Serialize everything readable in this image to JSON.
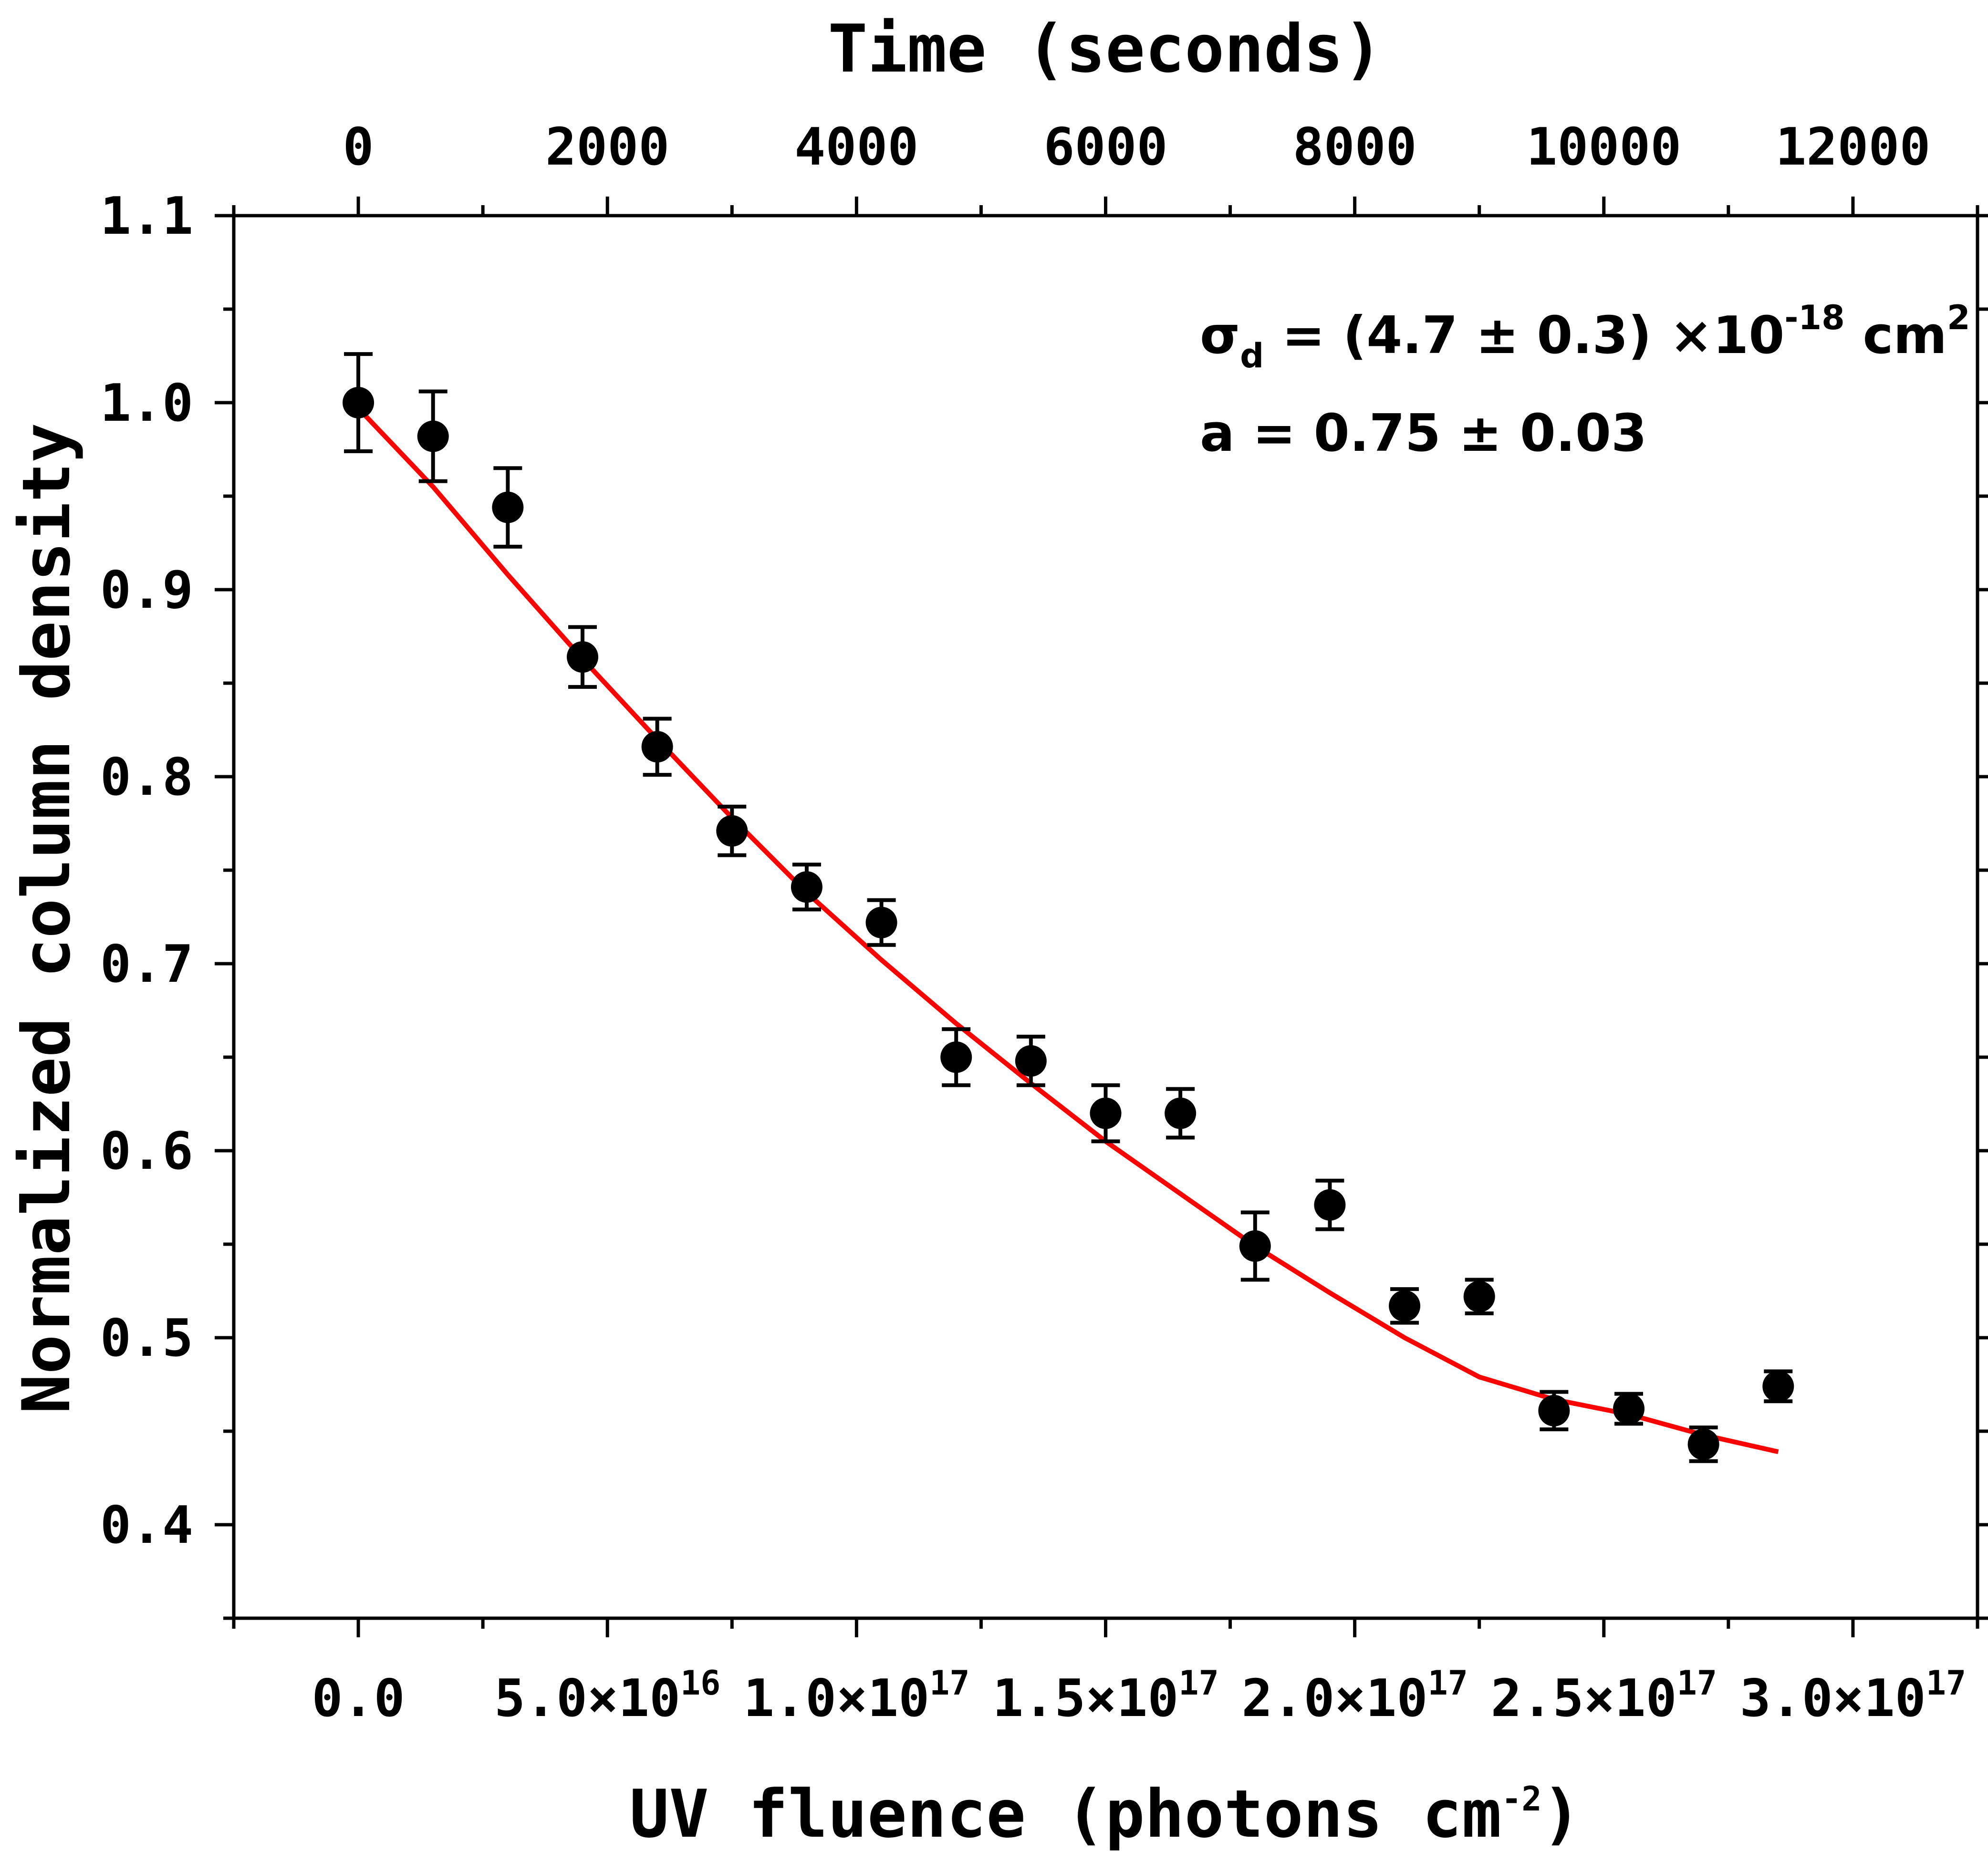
{
  "chart_data": {
    "type": "scatter",
    "xlabel": "UV fluence (photons cm",
    "xlabel_sup": "-2",
    "xlabel_end": ")",
    "x2label": "Time (seconds)",
    "ylabel": "Normalized column density",
    "xlim": [
      -2.5e+16,
      3.25e+17
    ],
    "ylim": [
      0.35,
      1.1
    ],
    "x2lim": [
      -1000,
      13000
    ],
    "grid": false,
    "x_ticks": [
      {
        "value": 0,
        "base": "0.0",
        "exp": ""
      },
      {
        "value": 5e+16,
        "base": "5.0×10",
        "exp": "16"
      },
      {
        "value": 1e+17,
        "base": "1.0×10",
        "exp": "17"
      },
      {
        "value": 1.5e+17,
        "base": "1.5×10",
        "exp": "17"
      },
      {
        "value": 2e+17,
        "base": "2.0×10",
        "exp": "17"
      },
      {
        "value": 2.5e+17,
        "base": "2.5×10",
        "exp": "17"
      },
      {
        "value": 3e+17,
        "base": "3.0×10",
        "exp": "17"
      }
    ],
    "x2_ticks": [
      {
        "value": 0,
        "label": "0"
      },
      {
        "value": 2000,
        "label": "2000"
      },
      {
        "value": 4000,
        "label": "4000"
      },
      {
        "value": 6000,
        "label": "6000"
      },
      {
        "value": 8000,
        "label": "8000"
      },
      {
        "value": 10000,
        "label": "10000"
      },
      {
        "value": 12000,
        "label": "12000"
      }
    ],
    "y_ticks": [
      {
        "value": 0.4,
        "label": "0.4"
      },
      {
        "value": 0.5,
        "label": "0.5"
      },
      {
        "value": 0.6,
        "label": "0.6"
      },
      {
        "value": 0.7,
        "label": "0.7"
      },
      {
        "value": 0.8,
        "label": "0.8"
      },
      {
        "value": 0.9,
        "label": "0.9"
      },
      {
        "value": 1.0,
        "label": "1.0"
      },
      {
        "value": 1.1,
        "label": "1.1"
      }
    ],
    "series": [
      {
        "type": "scatter",
        "color": "#000000",
        "x": [
          0,
          1.5e+16,
          3e+16,
          4.5e+16,
          6e+16,
          7.5e+16,
          9e+16,
          1.05e+17,
          1.2e+17,
          1.35e+17,
          1.5e+17,
          1.65e+17,
          1.8e+17,
          1.95e+17,
          2.1e+17,
          2.25e+17,
          2.4e+17,
          2.55e+17,
          2.7e+17,
          2.85e+17
        ],
        "y": [
          1.0,
          0.982,
          0.944,
          0.864,
          0.816,
          0.771,
          0.741,
          0.722,
          0.65,
          0.648,
          0.62,
          0.62,
          0.549,
          0.571,
          0.517,
          0.522,
          0.461,
          0.462,
          0.443,
          0.474
        ],
        "yerr": [
          0.026,
          0.024,
          0.021,
          0.016,
          0.015,
          0.013,
          0.012,
          0.012,
          0.015,
          0.013,
          0.015,
          0.013,
          0.018,
          0.013,
          0.009,
          0.009,
          0.01,
          0.008,
          0.009,
          0.008
        ]
      },
      {
        "type": "line",
        "color": "#ff0000",
        "x": [
          0,
          1.5e+16,
          3e+16,
          4.5e+16,
          6e+16,
          7.5e+16,
          9e+16,
          1.05e+17,
          1.2e+17,
          1.35e+17,
          1.5e+17,
          1.65e+17,
          1.8e+17,
          1.95e+17,
          2.1e+17,
          2.25e+17,
          2.4e+17,
          2.55e+17,
          2.7e+17,
          2.85e+17
        ],
        "y": [
          0.997,
          0.955,
          0.908,
          0.863,
          0.82,
          0.778,
          0.738,
          0.702,
          0.668,
          0.636,
          0.605,
          0.577,
          0.549,
          0.524,
          0.5,
          0.479,
          0.467,
          0.459,
          0.448,
          0.439
        ]
      }
    ],
    "annotations": {
      "sigma": "σ",
      "sigma_sub": "d",
      "sigma_value": " = (4.7 ± 0.3) ×10",
      "sigma_exp": "-18",
      "sigma_unit": " cm",
      "sigma_unit_exp": "2",
      "a_line": "a = 0.75 ± 0.03"
    }
  }
}
